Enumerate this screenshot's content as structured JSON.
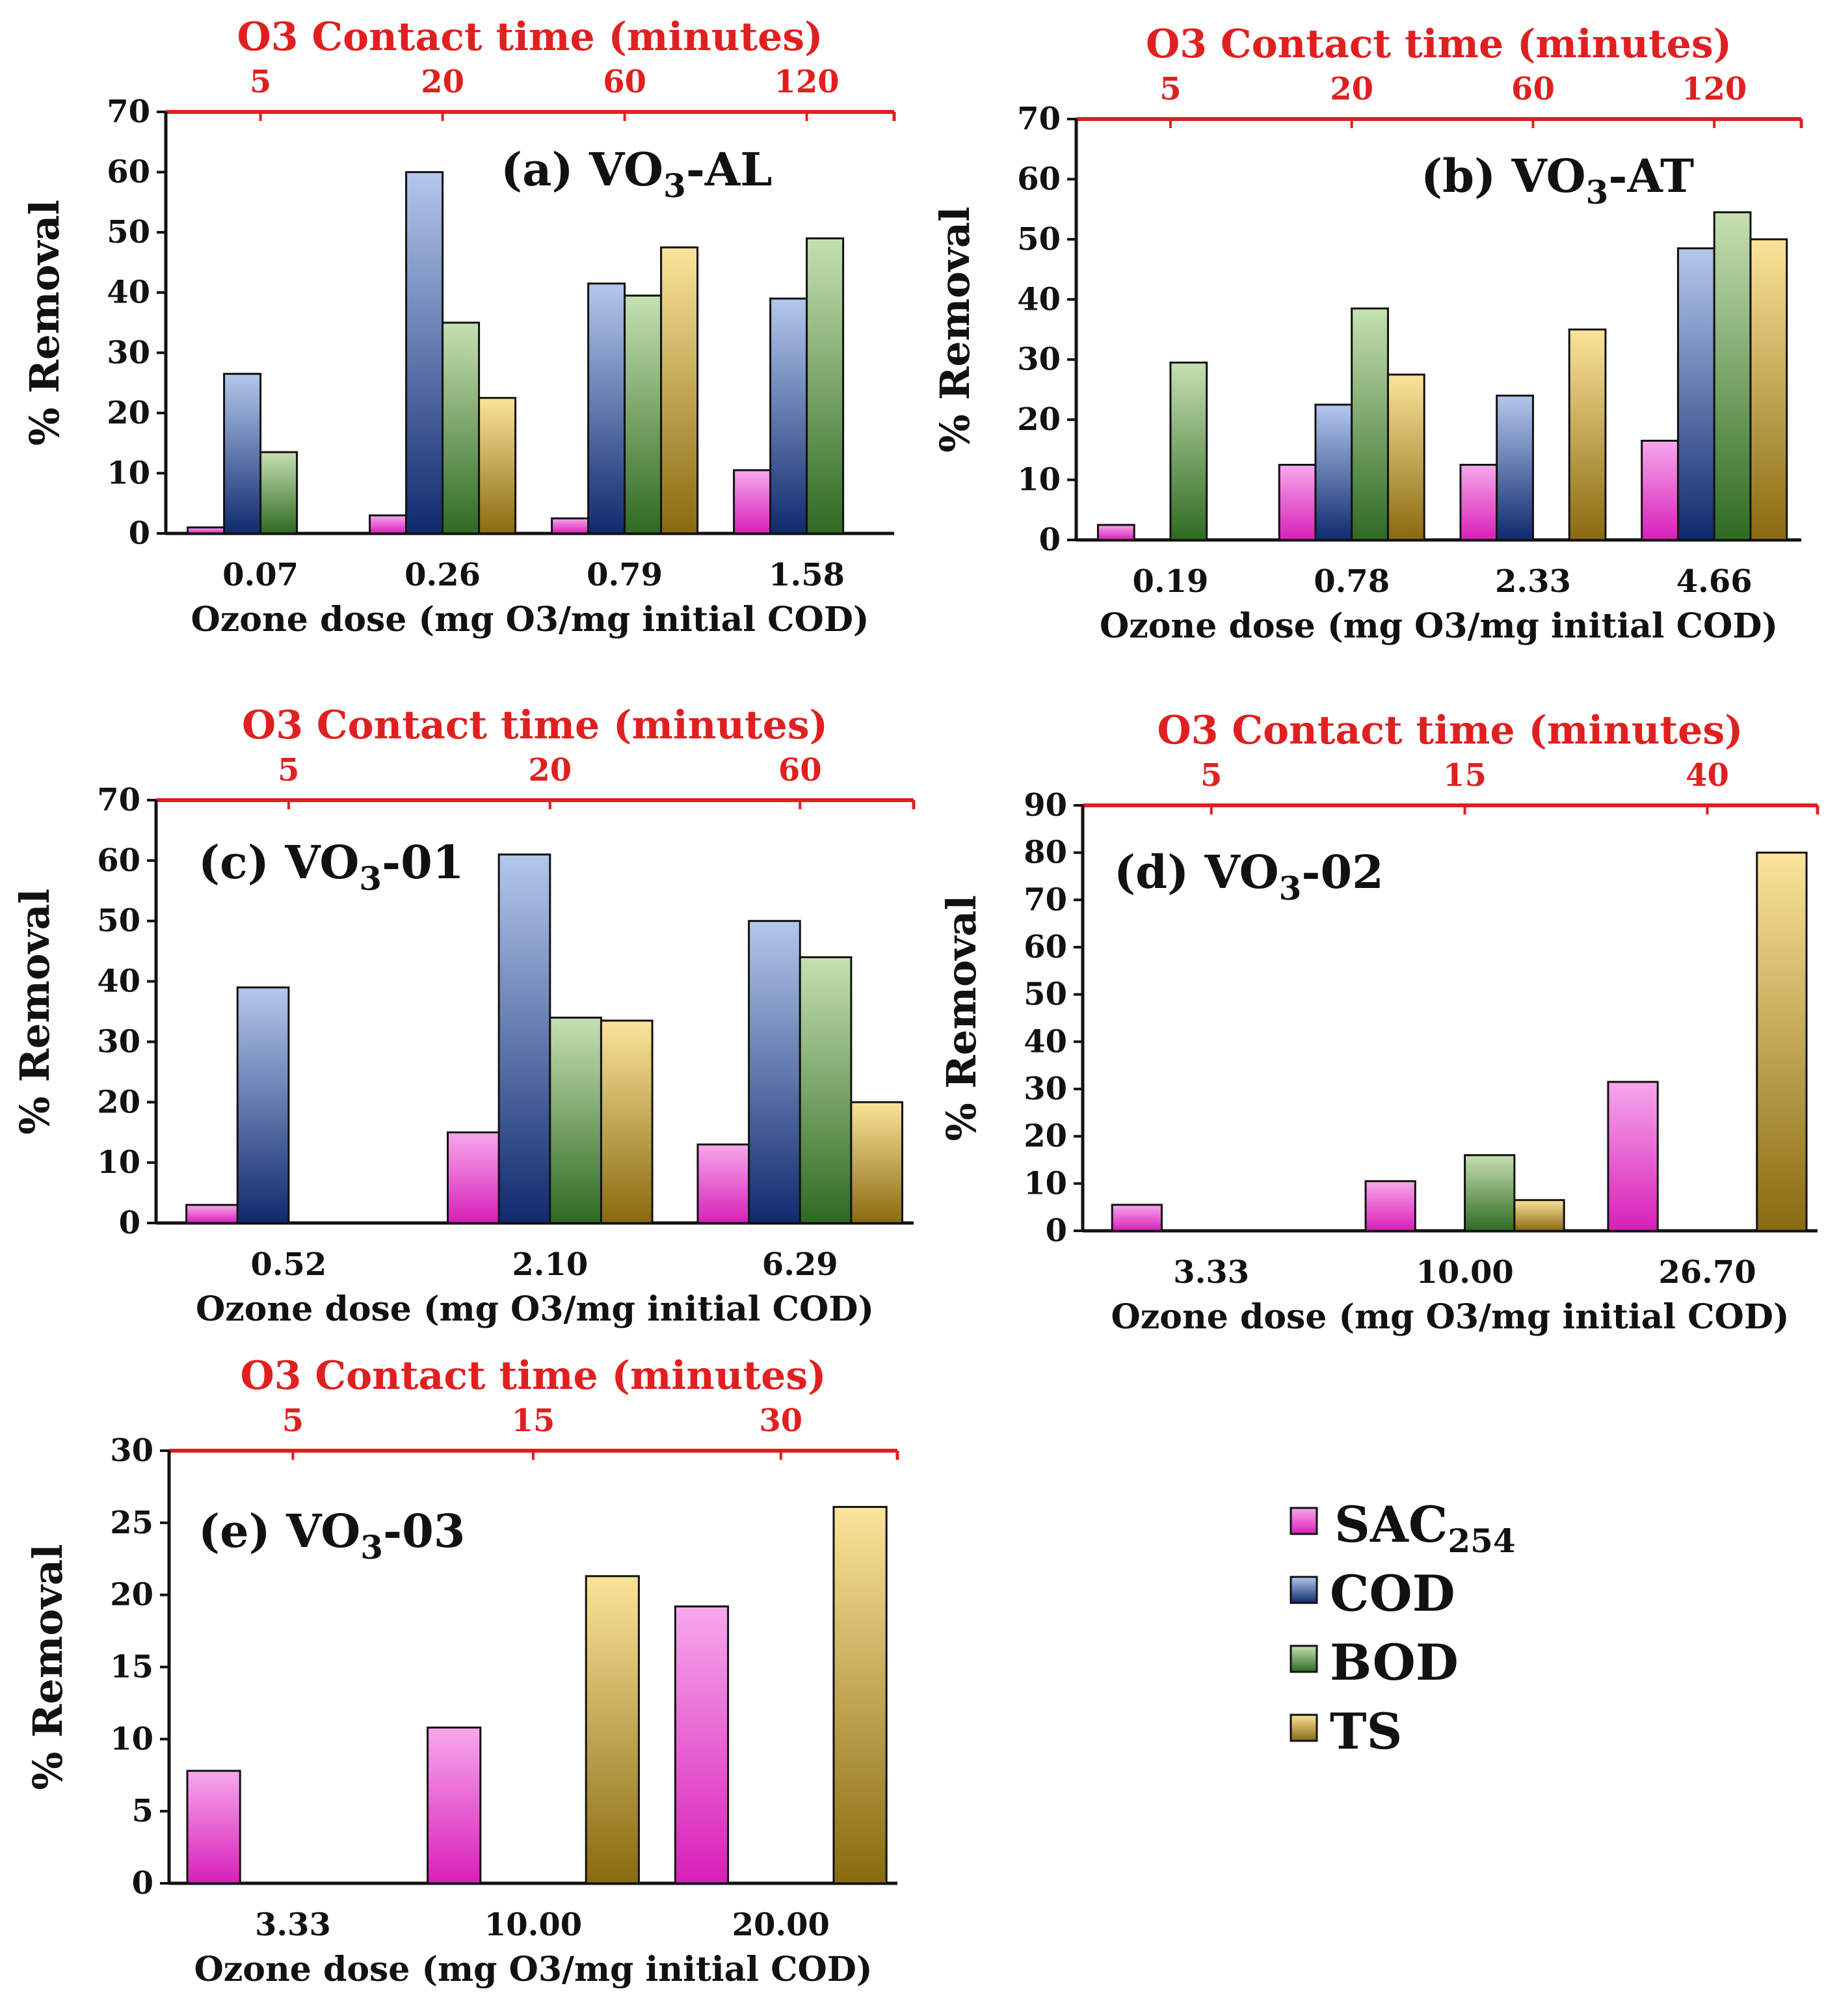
{
  "legend": [
    {
      "key": "sac",
      "label": "SAC",
      "sub": "254"
    },
    {
      "key": "cod",
      "label": "COD",
      "sub": ""
    },
    {
      "key": "bod",
      "label": "BOD",
      "sub": ""
    },
    {
      "key": "ts",
      "label": "TS",
      "sub": ""
    }
  ],
  "colors": {
    "sac": "#e040c8",
    "cod": "#2a4fa8",
    "bod": "#4f8a3c",
    "ts": "#c8a020",
    "axis_top": "#e02020",
    "axis": "#111111"
  },
  "chart_data": [
    {
      "type": "bar",
      "panel": "a",
      "title": "(a) VO",
      "title_sub": "3",
      "title_suffix": "-AL",
      "top_axis_label": "O3 Contact time (minutes)",
      "top_ticks": [
        "5",
        "20",
        "60",
        "120"
      ],
      "xlabel": "Ozone dose (mg O3/mg initial COD)",
      "ylabel": "% Removal",
      "ylim": [
        0,
        70
      ],
      "yticks": [
        0,
        10,
        20,
        30,
        40,
        50,
        60,
        70
      ],
      "categories": [
        "0.07",
        "0.26",
        "0.79",
        "1.58"
      ],
      "series": [
        {
          "name": "SAC254",
          "values": [
            1,
            3,
            2.5,
            10.5
          ]
        },
        {
          "name": "COD",
          "values": [
            26.5,
            60,
            41.5,
            39
          ]
        },
        {
          "name": "BOD",
          "values": [
            13.5,
            35,
            39.5,
            49
          ]
        },
        {
          "name": "TS",
          "values": [
            0,
            22.5,
            47.5,
            0
          ]
        }
      ]
    },
    {
      "type": "bar",
      "panel": "b",
      "title": "(b) VO",
      "title_sub": "3",
      "title_suffix": "-AT",
      "top_axis_label": "O3 Contact time (minutes)",
      "top_ticks": [
        "5",
        "20",
        "60",
        "120"
      ],
      "xlabel": "Ozone dose (mg O3/mg initial COD)",
      "ylabel": "% Removal",
      "ylim": [
        0,
        70
      ],
      "yticks": [
        0,
        10,
        20,
        30,
        40,
        50,
        60,
        70
      ],
      "categories": [
        "0.19",
        "0.78",
        "2.33",
        "4.66"
      ],
      "series": [
        {
          "name": "SAC254",
          "values": [
            2.5,
            12.5,
            12.5,
            16.5
          ]
        },
        {
          "name": "COD",
          "values": [
            0,
            22.5,
            24,
            48.5
          ]
        },
        {
          "name": "BOD",
          "values": [
            29.5,
            38.5,
            0,
            54.5
          ]
        },
        {
          "name": "TS",
          "values": [
            0,
            27.5,
            35,
            50
          ]
        }
      ]
    },
    {
      "type": "bar",
      "panel": "c",
      "title": "(c) VO",
      "title_sub": "3",
      "title_suffix": "-01",
      "top_axis_label": "O3 Contact time (minutes)",
      "top_ticks": [
        "5",
        "20",
        "60"
      ],
      "xlabel": "Ozone dose (mg O3/mg initial COD)",
      "ylabel": "% Removal",
      "ylim": [
        0,
        70
      ],
      "yticks": [
        0,
        10,
        20,
        30,
        40,
        50,
        60,
        70
      ],
      "categories": [
        "0.52",
        "2.10",
        "6.29"
      ],
      "series": [
        {
          "name": "SAC254",
          "values": [
            3,
            15,
            13
          ]
        },
        {
          "name": "COD",
          "values": [
            39,
            61,
            50
          ]
        },
        {
          "name": "BOD",
          "values": [
            0,
            34,
            44
          ]
        },
        {
          "name": "TS",
          "values": [
            0,
            33.5,
            20
          ]
        }
      ]
    },
    {
      "type": "bar",
      "panel": "d",
      "title": "(d) VO",
      "title_sub": "3",
      "title_suffix": "-02",
      "top_axis_label": "O3 Contact time (minutes)",
      "top_ticks": [
        "5",
        "15",
        "40"
      ],
      "xlabel": "Ozone dose (mg O3/mg initial COD)",
      "ylabel": "% Removal",
      "ylim": [
        0,
        90
      ],
      "yticks": [
        0,
        10,
        20,
        30,
        40,
        50,
        60,
        70,
        80,
        90
      ],
      "categories": [
        "3.33",
        "10.00",
        "26.70"
      ],
      "series": [
        {
          "name": "SAC254",
          "values": [
            5.5,
            10.5,
            31.5
          ]
        },
        {
          "name": "COD",
          "values": [
            0,
            0,
            0
          ]
        },
        {
          "name": "BOD",
          "values": [
            0,
            16,
            0
          ]
        },
        {
          "name": "TS",
          "values": [
            0,
            6.5,
            80
          ]
        }
      ]
    },
    {
      "type": "bar",
      "panel": "e",
      "title": "(e) VO",
      "title_sub": "3",
      "title_suffix": "-03",
      "top_axis_label": "O3 Contact time (minutes)",
      "top_ticks": [
        "5",
        "15",
        "30"
      ],
      "xlabel": "Ozone dose (mg O3/mg initial COD)",
      "ylabel": "% Removal",
      "ylim": [
        0,
        30
      ],
      "yticks": [
        0,
        5,
        10,
        15,
        20,
        25,
        30
      ],
      "categories": [
        "3.33",
        "10.00",
        "20.00"
      ],
      "series": [
        {
          "name": "SAC254",
          "values": [
            7.8,
            10.8,
            19.2
          ]
        },
        {
          "name": "COD",
          "values": [
            0,
            0,
            0
          ]
        },
        {
          "name": "BOD",
          "values": [
            0,
            0,
            0
          ]
        },
        {
          "name": "TS",
          "values": [
            0,
            21.3,
            26.1
          ]
        }
      ]
    }
  ]
}
